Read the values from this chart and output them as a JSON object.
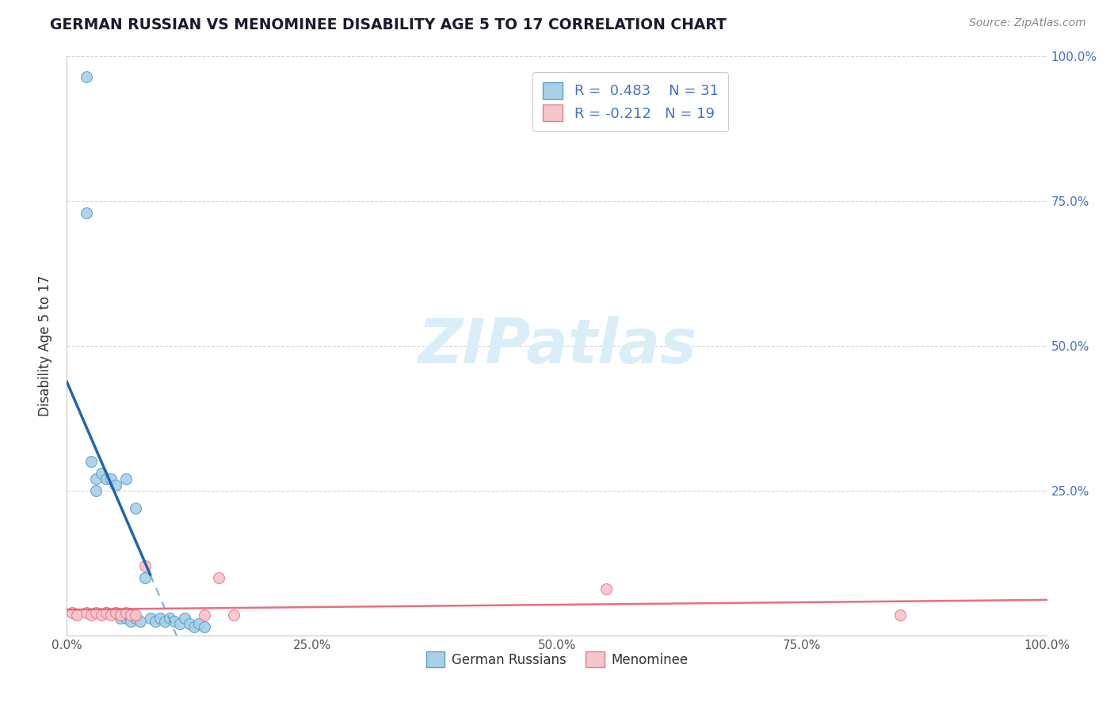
{
  "title": "GERMAN RUSSIAN VS MENOMINEE DISABILITY AGE 5 TO 17 CORRELATION CHART",
  "source_text": "Source: ZipAtlas.com",
  "ylabel": "Disability Age 5 to 17",
  "xlim": [
    0.0,
    1.0
  ],
  "ylim": [
    0.0,
    1.0
  ],
  "xticks": [
    0.0,
    0.25,
    0.5,
    0.75,
    1.0
  ],
  "xtick_labels": [
    "0.0%",
    "25.0%",
    "50.0%",
    "75.0%",
    "100.0%"
  ],
  "yticks": [
    0.0,
    0.25,
    0.5,
    0.75,
    1.0
  ],
  "ytick_labels_left": [
    "",
    "",
    "",
    "",
    ""
  ],
  "ytick_labels_right": [
    "",
    "25.0%",
    "50.0%",
    "75.0%",
    "100.0%"
  ],
  "blue_color": "#a8d0e8",
  "blue_edge_color": "#5b9ec9",
  "pink_color": "#f7c5cc",
  "pink_edge_color": "#e87a8a",
  "line_blue_color": "#2166ac",
  "line_pink_color": "#e8546a",
  "right_axis_color": "#4472c4",
  "title_color": "#1a1a2e",
  "source_color": "#888888",
  "watermark_text": "ZIPatlas",
  "watermark_color": "#daeef8",
  "blue_R": 0.483,
  "blue_N": 31,
  "pink_R": -0.212,
  "pink_N": 19,
  "blue_scatter_x": [
    0.02,
    0.02,
    0.025,
    0.03,
    0.03,
    0.035,
    0.04,
    0.04,
    0.045,
    0.05,
    0.05,
    0.055,
    0.06,
    0.06,
    0.065,
    0.07,
    0.07,
    0.075,
    0.08,
    0.085,
    0.09,
    0.095,
    0.1,
    0.105,
    0.11,
    0.115,
    0.12,
    0.125,
    0.13,
    0.135,
    0.14
  ],
  "blue_scatter_y": [
    0.965,
    0.73,
    0.3,
    0.25,
    0.27,
    0.28,
    0.27,
    0.04,
    0.27,
    0.26,
    0.04,
    0.03,
    0.27,
    0.03,
    0.025,
    0.22,
    0.03,
    0.025,
    0.1,
    0.03,
    0.025,
    0.03,
    0.025,
    0.03,
    0.025,
    0.02,
    0.03,
    0.02,
    0.015,
    0.02,
    0.015
  ],
  "pink_scatter_x": [
    0.005,
    0.01,
    0.02,
    0.025,
    0.03,
    0.035,
    0.04,
    0.045,
    0.05,
    0.055,
    0.06,
    0.065,
    0.07,
    0.08,
    0.14,
    0.155,
    0.17,
    0.55,
    0.85
  ],
  "pink_scatter_y": [
    0.04,
    0.035,
    0.04,
    0.035,
    0.04,
    0.035,
    0.04,
    0.035,
    0.04,
    0.035,
    0.04,
    0.035,
    0.035,
    0.12,
    0.035,
    0.1,
    0.035,
    0.08,
    0.035
  ],
  "marker_size": 100
}
